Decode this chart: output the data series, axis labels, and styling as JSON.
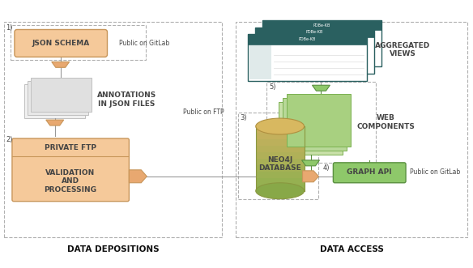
{
  "bg": "#ffffff",
  "dash_color": "#b0b0b0",
  "orange_fill": "#f5c99a",
  "orange_edge": "#c8965a",
  "orange_arrow_fill": "#e8a870",
  "orange_arrow_edge": "#c8965a",
  "gray_page_fill": [
    "#f0f0f0",
    "#e8e8e8",
    "#e0e0e0"
  ],
  "gray_page_edge": "#c0c0c0",
  "green_box_fill": "#8ec86a",
  "green_box_edge": "#5a9040",
  "green_page_fills": [
    "#c8e0a8",
    "#b8d898",
    "#a8d080"
  ],
  "green_page_edge": "#7ab050",
  "db_body_fill": "#c8b060",
  "db_body_fill2": "#a8c060",
  "db_top_fill": "#d8b860",
  "db_top_edge": "#b09040",
  "db_side_edge": "#8a9840",
  "teal_dark": "#2a6060",
  "teal_bar": "#1e5858",
  "browser_edge": "#2a6060",
  "line_color": "#aaaaaa",
  "conn_line": "#999999",
  "text_color": "#444444",
  "label_bold": "#111111",
  "step1": "1)",
  "step2": "2)",
  "step3": "3)",
  "step4": "4)",
  "step5": "5)",
  "json_schema": "JSON SCHEMA",
  "public_gitlab1": "Public on GitLab",
  "annotations": "ANNOTATIONS\nIN JSON FILES",
  "private_ftp": "PRIVATE FTP",
  "validation": "VALIDATION\nAND\nPROCESSING",
  "public_ftp": "Public on FTP",
  "neo4j": "NEO4J\nDATABASE",
  "graph_api": "GRAPH API",
  "public_gitlab2": "Public on GitLab",
  "web_comp": "WEB\nCOMPONENTS",
  "agg_views": "AGGREGATED\nVIEWS",
  "dep_label": "DATA DEPOSITIONS",
  "acc_label": "DATA ACCESS"
}
